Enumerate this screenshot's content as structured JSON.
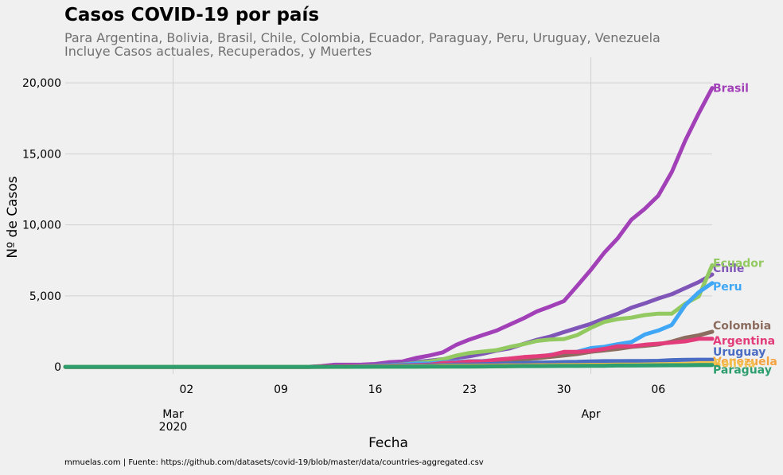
{
  "chart_data": {
    "type": "line",
    "title": "Casos COVID-19 por país",
    "subtitle_lines": [
      "Para Argentina, Bolivia, Brasil, Chile, Colombia, Ecuador, Paraguay, Peru, Uruguay, Venezuela",
      "Incluye Casos actuales, Recuperados, y Muertes"
    ],
    "xlabel": "Fecha",
    "ylabel": "Nº de Casos",
    "footer": "mmuelas.com  |  Fuente: https://github.com/datasets/covid-19/blob/master/data/countries-aggregated.csv",
    "x_start": "2020-02-22",
    "x_end": "2020-04-10",
    "xlim": [
      "2020-02-22",
      "2020-04-10"
    ],
    "ylim": [
      -500,
      21800
    ],
    "y_ticks": [
      0,
      5000,
      10000,
      15000,
      20000
    ],
    "y_tick_labels": [
      "0",
      "5,000",
      "10,000",
      "15,000",
      "20,000"
    ],
    "x_ticks": [
      "2020-03-02",
      "2020-03-09",
      "2020-03-16",
      "2020-03-23",
      "2020-03-30",
      "2020-04-06"
    ],
    "x_tick_labels": [
      "02",
      "09",
      "16",
      "23",
      "30",
      "06"
    ],
    "month_labels": [
      {
        "date": "2020-03-01",
        "text": "Mar",
        "year": "2020"
      },
      {
        "date": "2020-04-01",
        "text": "Apr",
        "year": ""
      }
    ],
    "month_gridlines": [
      "2020-03-01",
      "2020-04-01"
    ],
    "grid": true,
    "legend": "end-of-line labels",
    "dates": [
      "2020-03-12",
      "2020-03-13",
      "2020-03-14",
      "2020-03-15",
      "2020-03-16",
      "2020-03-17",
      "2020-03-18",
      "2020-03-19",
      "2020-03-20",
      "2020-03-21",
      "2020-03-22",
      "2020-03-23",
      "2020-03-24",
      "2020-03-25",
      "2020-03-26",
      "2020-03-27",
      "2020-03-28",
      "2020-03-29",
      "2020-03-30",
      "2020-03-31",
      "2020-04-01",
      "2020-04-02",
      "2020-04-03",
      "2020-04-04",
      "2020-04-05",
      "2020-04-06",
      "2020-04-07",
      "2020-04-08",
      "2020-04-09",
      "2020-04-10"
    ],
    "series": [
      {
        "name": "Brasil",
        "color": "#a240b8",
        "values": [
          52,
          151,
          151,
          162,
          200,
          321,
          372,
          621,
          793,
          1021,
          1546,
          1924,
          2247,
          2554,
          2985,
          3417,
          3904,
          4256,
          4630,
          5717,
          6836,
          8044,
          9056,
          10360,
          11130,
          12056,
          13717,
          15927,
          17857,
          19638
        ],
        "label_offset": 0
      },
      {
        "name": "Chile",
        "color": "#7f56b8",
        "values": [
          23,
          43,
          61,
          75,
          156,
          201,
          238,
          342,
          434,
          537,
          632,
          746,
          922,
          1142,
          1306,
          1610,
          1909,
          2139,
          2449,
          2738,
          3031,
          3404,
          3737,
          4161,
          4471,
          4815,
          5116,
          5546,
          5972,
          6501
        ],
        "label_offset": -8
      },
      {
        "name": "Ecuador",
        "color": "#93c961",
        "values": [
          17,
          17,
          28,
          37,
          58,
          111,
          168,
          260,
          367,
          532,
          789,
          981,
          1082,
          1173,
          1403,
          1595,
          1823,
          1924,
          1962,
          2240,
          2748,
          3163,
          3368,
          3465,
          3646,
          3747,
          3747,
          4450,
          4965,
          7161
        ],
        "label_offset": -3
      },
      {
        "name": "Peru",
        "color": "#3fa7f5",
        "values": [
          22,
          38,
          43,
          71,
          86,
          117,
          145,
          234,
          234,
          318,
          363,
          395,
          416,
          480,
          580,
          635,
          671,
          852,
          950,
          1065,
          1323,
          1414,
          1595,
          1746,
          2281,
          2561,
          2954,
          4342,
          5256,
          5897
        ],
        "label_offset": 4
      },
      {
        "name": "Colombia",
        "color": "#8c6c5e",
        "values": [
          9,
          13,
          22,
          34,
          54,
          65,
          93,
          102,
          128,
          196,
          231,
          306,
          378,
          470,
          491,
          539,
          608,
          702,
          798,
          906,
          1065,
          1161,
          1267,
          1406,
          1485,
          1579,
          1780,
          2054,
          2223,
          2473
        ],
        "label_offset": -8
      },
      {
        "name": "Argentina",
        "color": "#e23c7a",
        "values": [
          31,
          34,
          45,
          56,
          68,
          79,
          97,
          128,
          158,
          266,
          301,
          387,
          387,
          502,
          589,
          690,
          745,
          820,
          1054,
          1054,
          1133,
          1265,
          1451,
          1451,
          1554,
          1628,
          1715,
          1795,
          1975,
          1975
        ],
        "label_offset": 2
      },
      {
        "name": "Uruguay",
        "color": "#4a6cc2",
        "values": [
          0,
          4,
          4,
          8,
          29,
          50,
          79,
          94,
          110,
          135,
          158,
          162,
          189,
          217,
          238,
          274,
          304,
          310,
          338,
          350,
          386,
          400,
          400,
          406,
          415,
          424,
          473,
          494,
          501,
          502
        ],
        "label_offset": -10
      },
      {
        "name": "Venezuela",
        "color": "#f5a340",
        "values": [
          0,
          0,
          0,
          10,
          17,
          33,
          36,
          42,
          42,
          70,
          70,
          77,
          84,
          91,
          107,
          107,
          119,
          119,
          135,
          135,
          143,
          146,
          153,
          155,
          159,
          165,
          167,
          171,
          171,
          181
        ],
        "label_offset": -4
      },
      {
        "name": "Bolivia",
        "color": "#f2c14e",
        "values": [
          3,
          3,
          10,
          10,
          11,
          11,
          12,
          12,
          19,
          19,
          24,
          27,
          29,
          32,
          43,
          61,
          74,
          81,
          97,
          107,
          115,
          123,
          132,
          139,
          157,
          183,
          194,
          210,
          264,
          268
        ],
        "label_offset": 0
      },
      {
        "name": "Paraguay",
        "color": "#2e9e6f",
        "values": [
          2,
          5,
          6,
          6,
          8,
          9,
          11,
          11,
          13,
          18,
          22,
          22,
          27,
          37,
          41,
          52,
          56,
          59,
          64,
          65,
          69,
          77,
          92,
          96,
          104,
          113,
          115,
          119,
          129,
          133
        ],
        "label_offset": 6
      }
    ]
  }
}
